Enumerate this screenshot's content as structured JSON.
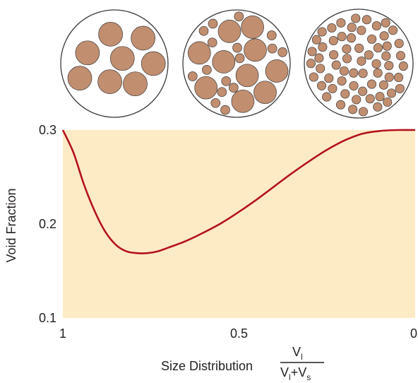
{
  "chart_data": {
    "type": "line",
    "ylabel": "Void Fraction",
    "xlabel": {
      "text": "Size Distribution",
      "fraction_numerator": "V",
      "numerator_subscript": "l",
      "fraction_denominator_left": "V",
      "denominator_left_subscript": "l",
      "fraction_denominator_plus": "+",
      "fraction_denominator_right": "V",
      "denominator_right_subscript": "s"
    },
    "xlim": [
      1,
      0
    ],
    "ylim": [
      0.1,
      0.3
    ],
    "x_reversed": true,
    "x_ticks": [
      {
        "value": 1,
        "label": "1"
      },
      {
        "value": 0.5,
        "label": "0.5"
      },
      {
        "value": 0,
        "label": "0"
      }
    ],
    "y_ticks": [
      {
        "value": 0.3,
        "label": "0.3"
      },
      {
        "value": 0.2,
        "label": "0.2"
      },
      {
        "value": 0.1,
        "label": "0.1"
      }
    ],
    "series": [
      {
        "color": "#b5121b",
        "x": [
          1.0,
          0.97,
          0.94,
          0.91,
          0.88,
          0.85,
          0.82,
          0.79,
          0.76,
          0.73,
          0.7,
          0.65,
          0.6,
          0.55,
          0.5,
          0.45,
          0.4,
          0.35,
          0.3,
          0.25,
          0.2,
          0.15,
          0.1,
          0.05,
          0.0
        ],
        "y": [
          0.3,
          0.276,
          0.242,
          0.214,
          0.192,
          0.178,
          0.171,
          0.169,
          0.169,
          0.171,
          0.175,
          0.182,
          0.191,
          0.201,
          0.213,
          0.226,
          0.24,
          0.254,
          0.267,
          0.279,
          0.289,
          0.296,
          0.299,
          0.3,
          0.3
        ]
      }
    ],
    "plot_background": "#fdebc6",
    "grid": false,
    "legend": "none"
  },
  "illustration": {
    "particle_fill": "#c18e6f",
    "particle_stroke": "#3a3a3a",
    "circles": [
      {
        "name": "large-spheres-packing"
      },
      {
        "name": "mixed-spheres-packing"
      },
      {
        "name": "small-spheres-packing"
      }
    ]
  }
}
